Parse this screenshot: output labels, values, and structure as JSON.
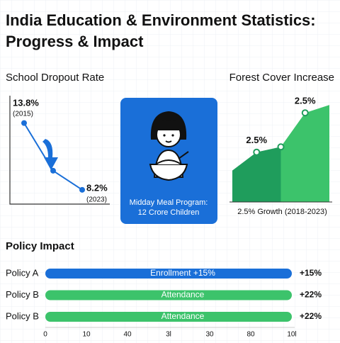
{
  "header": {
    "title_lines": [
      "India Education & Environment Statistics:",
      "Progress & Impact"
    ]
  },
  "chart_data": [
    {
      "type": "line",
      "title": "School Dropout Rate",
      "categories": [
        "(2015)",
        null,
        "(2023)"
      ],
      "values": [
        13.8,
        9.8,
        8.2
      ],
      "value_labels": [
        "13.8%",
        null,
        "8.2%"
      ],
      "color": "#1a6fd8",
      "ylim": [
        7,
        15.8
      ]
    },
    {
      "type": "area",
      "title": "Forest Cover Increase",
      "values": [
        2.4,
        3.8,
        4.2,
        6.8,
        7.4
      ],
      "ylim": [
        0,
        10
      ],
      "color": "#1f9d5c",
      "color_light": "#3cc36b",
      "annotations": [
        {
          "text": "2.5%",
          "point": 1
        },
        {
          "text": "2.5%",
          "point": 3
        }
      ],
      "caption": "2.5% Growth (2018-2023)"
    }
  ],
  "card": {
    "lines": [
      "Midday Meal Program:",
      "12 Crore Children"
    ],
    "color": "#1a6fd8"
  },
  "policy": {
    "title": "Policy Impact",
    "rows": [
      {
        "label": "Policy A",
        "bar_text": "Enrollment +15%",
        "value": "+15%",
        "color": "#1a6fd8"
      },
      {
        "label": "Policy B",
        "bar_text": "Attendance",
        "value": "+22%",
        "color": "#3cc36b"
      },
      {
        "label": "Policy B",
        "bar_text": "Attendance",
        "value": "+22%",
        "color": "#3cc36b"
      }
    ],
    "axis_labels": [
      "0",
      "10",
      "40",
      "3l",
      "30",
      "80",
      "10l"
    ]
  }
}
